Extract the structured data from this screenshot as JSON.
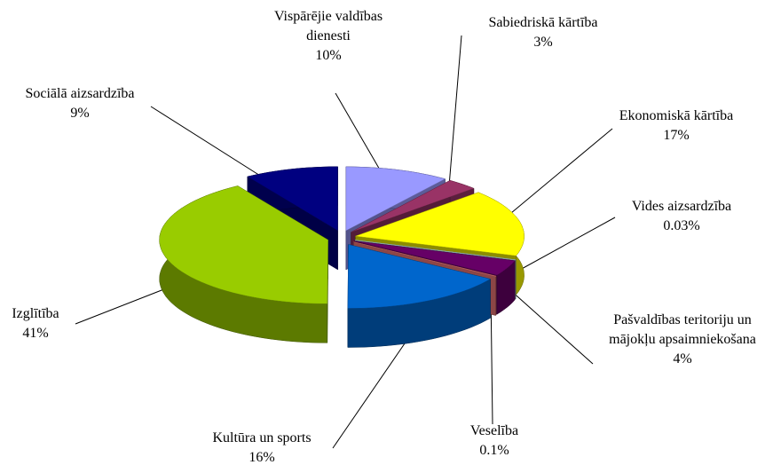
{
  "chart_data": {
    "type": "pie",
    "categories": [
      "Vispārējie valdības dienesti",
      "Sabiedriskā kārtība",
      "Ekonomiskā kārtība",
      "Vides aizsardzība",
      "Pašvaldības teritoriju un mājokļu apsaimniekošana",
      "Veselība",
      "Kultūra un sports",
      "Izglītība",
      "Sociālā aizsardzība"
    ],
    "values": [
      10,
      3,
      17,
      0.03,
      4,
      0.1,
      16,
      41,
      9
    ],
    "value_labels": [
      "10%",
      "3%",
      "17%",
      "0.03%",
      "4%",
      "0.1%",
      "16%",
      "41%",
      "9%"
    ],
    "colors": [
      "#9999ff",
      "#993366",
      "#ffff00",
      "#ccffff",
      "#660066",
      "#ff8080",
      "#0066cc",
      "#99cc00",
      "#000080"
    ]
  }
}
